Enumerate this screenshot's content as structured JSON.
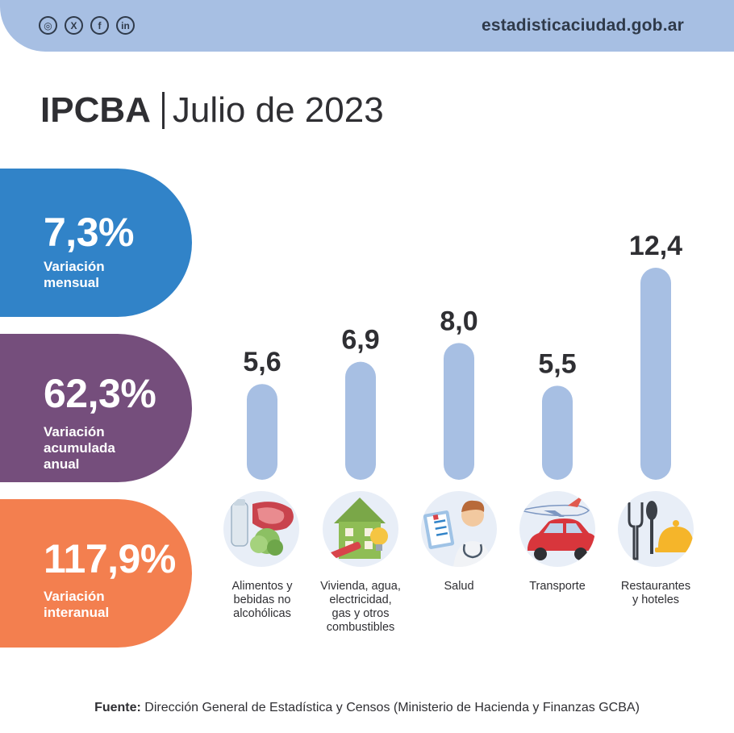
{
  "header": {
    "socials": [
      {
        "name": "instagram-icon",
        "glyph": "◎"
      },
      {
        "name": "x-icon",
        "glyph": "X"
      },
      {
        "name": "facebook-icon",
        "glyph": "f"
      },
      {
        "name": "linkedin-icon",
        "glyph": "in"
      }
    ],
    "site": "estadisticaciudad.gob.ar"
  },
  "title": {
    "main": "IPCBA",
    "sub": "Julio de 2023"
  },
  "stats": [
    {
      "value": "7,3%",
      "label": "Variación\nmensual",
      "color": "#3183c8"
    },
    {
      "value": "62,3%",
      "label": "Variación\nacumulada\nanual",
      "color": "#754e7c"
    },
    {
      "value": "117,9%",
      "label": "Variación\ninteranual",
      "color": "#f37f4f"
    }
  ],
  "chart_data": {
    "type": "bar",
    "title": "IPCBA | Julio de 2023",
    "categories": [
      "Alimentos y\nbebidas no\nalcohólicas",
      "Vivienda, agua,\nelectricidad,\ngas y otros\ncombustibles",
      "Salud",
      "Transporte",
      "Restaurantes\ny hoteles"
    ],
    "values": [
      5.6,
      6.9,
      8.0,
      5.5,
      12.4
    ],
    "value_labels": [
      "5,6",
      "6,9",
      "8,0",
      "5,5",
      "12,4"
    ],
    "xlabel": "",
    "ylabel": "",
    "ylim": [
      0,
      12.4
    ],
    "bar_color": "#a7bfe3"
  },
  "footer": {
    "bold": "Fuente:",
    "text": " Dirección General de Estadística y Censos (Ministerio de Hacienda y Finanzas GCBA)"
  }
}
